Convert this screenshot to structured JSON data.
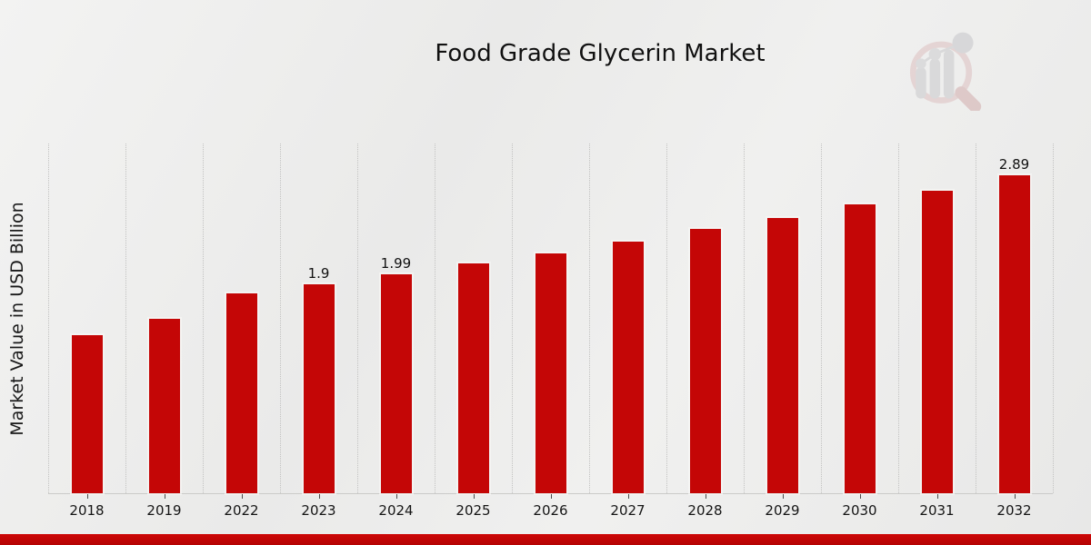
{
  "page": {
    "title": "Food Grade Glycerin Market"
  },
  "icons": {
    "logo": "magnifier-bar-chart-logo-icon"
  },
  "colors": {
    "bar": "#c40606",
    "accent_strip": "#bf0505",
    "background": "#ececeb",
    "grid": "#c2c2c1",
    "text": "#141414"
  },
  "chart_data": {
    "type": "bar",
    "title": "Food Grade Glycerin Market",
    "xlabel": "",
    "ylabel": "Market Value in USD Billion",
    "categories": [
      "2018",
      "2019",
      "2022",
      "2023",
      "2024",
      "2025",
      "2026",
      "2027",
      "2028",
      "2029",
      "2030",
      "2031",
      "2032"
    ],
    "values": [
      1.44,
      1.59,
      1.82,
      1.9,
      1.99,
      2.09,
      2.18,
      2.29,
      2.4,
      2.5,
      2.63,
      2.75,
      2.89
    ],
    "bar_labels": [
      "",
      "",
      "",
      "1.9",
      "1.99",
      "",
      "",
      "",
      "",
      "",
      "",
      "",
      "2.89"
    ],
    "ylim": [
      0,
      3.18
    ],
    "grid": "vertical-dotted",
    "legend": "none",
    "bar_color": "#c40606",
    "unit": "USD Billion"
  }
}
